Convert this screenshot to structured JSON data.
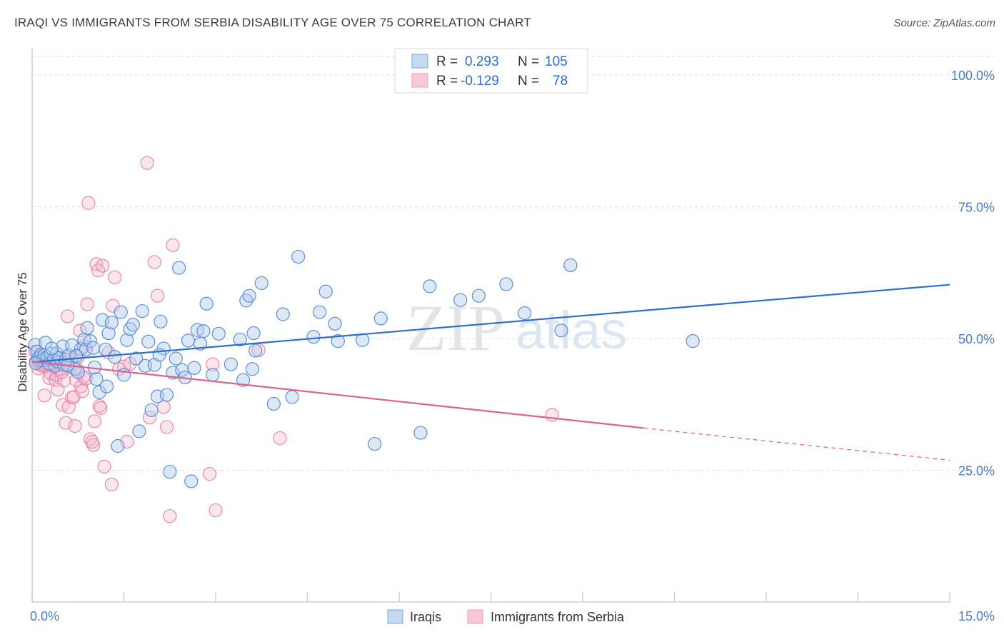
{
  "chart_data": {
    "type": "scatter",
    "title": "IRAQI VS IMMIGRANTS FROM SERBIA DISABILITY AGE OVER 75 CORRELATION CHART",
    "source": "Source: ZipAtlas.com",
    "xlabel": "",
    "ylabel": "Disability Age Over 75",
    "xlim": [
      0,
      15
    ],
    "ylim": [
      0,
      105
    ],
    "x_tick_labels": [
      "0.0%",
      "15.0%"
    ],
    "y_ticks": [
      25,
      50,
      75,
      100
    ],
    "y_tick_labels": [
      "25.0%",
      "50.0%",
      "75.0%",
      "100.0%"
    ],
    "watermark": "ZIPatlas",
    "legend": {
      "top": [
        {
          "r_label": "R =",
          "r_value": "0.293",
          "n_label": "N =",
          "n_value": "105"
        },
        {
          "r_label": "R =",
          "r_value": "-0.129",
          "n_label": "N =",
          "n_value": "78"
        }
      ],
      "bottom": [
        "Iraqis",
        "Immigrants from Serbia"
      ]
    },
    "series": [
      {
        "name": "Iraqis",
        "color": "#5b8fd6",
        "trend_color": "#2f6fcc",
        "trend": {
          "x0": 0.0,
          "y0": 45.5,
          "x1": 15.0,
          "y1": 60.2
        },
        "points": [
          [
            0.05,
            48.8
          ],
          [
            0.08,
            47.5
          ],
          [
            0.1,
            46.2
          ],
          [
            0.12,
            45.8
          ],
          [
            0.15,
            47.0
          ],
          [
            0.18,
            45.9
          ],
          [
            0.2,
            46.8
          ],
          [
            0.22,
            49.2
          ],
          [
            0.25,
            46.5
          ],
          [
            0.28,
            45.2
          ],
          [
            0.3,
            47.1
          ],
          [
            0.35,
            46.0
          ],
          [
            0.38,
            44.8
          ],
          [
            0.4,
            47.2
          ],
          [
            0.42,
            45.6
          ],
          [
            0.45,
            46.3
          ],
          [
            0.5,
            48.5
          ],
          [
            0.52,
            45.0
          ],
          [
            0.55,
            46.0
          ],
          [
            0.6,
            46.8
          ],
          [
            0.65,
            48.7
          ],
          [
            0.7,
            44.2
          ],
          [
            0.75,
            43.6
          ],
          [
            0.8,
            48.0
          ],
          [
            0.85,
            49.8
          ],
          [
            0.88,
            47.9
          ],
          [
            0.9,
            52.0
          ],
          [
            0.95,
            49.5
          ],
          [
            1.0,
            48.2
          ],
          [
            1.05,
            42.3
          ],
          [
            1.1,
            39.8
          ],
          [
            1.15,
            53.5
          ],
          [
            1.2,
            47.9
          ],
          [
            1.25,
            51.0
          ],
          [
            1.3,
            53.0
          ],
          [
            1.35,
            46.5
          ],
          [
            1.4,
            29.6
          ],
          [
            1.45,
            55.0
          ],
          [
            1.5,
            43.1
          ],
          [
            1.55,
            49.7
          ],
          [
            1.6,
            51.8
          ],
          [
            1.65,
            52.6
          ],
          [
            1.7,
            46.2
          ],
          [
            1.75,
            32.4
          ],
          [
            1.8,
            55.2
          ],
          [
            1.85,
            44.8
          ],
          [
            1.9,
            49.4
          ],
          [
            1.95,
            36.4
          ],
          [
            2.0,
            45.0
          ],
          [
            2.05,
            39.0
          ],
          [
            2.1,
            53.2
          ],
          [
            2.15,
            48.1
          ],
          [
            2.2,
            39.3
          ],
          [
            2.25,
            24.7
          ],
          [
            2.3,
            43.5
          ],
          [
            2.35,
            46.2
          ],
          [
            2.4,
            63.4
          ],
          [
            2.45,
            44.0
          ],
          [
            2.5,
            42.6
          ],
          [
            2.55,
            49.6
          ],
          [
            2.6,
            22.9
          ],
          [
            2.65,
            44.4
          ],
          [
            2.7,
            51.6
          ],
          [
            2.75,
            49.0
          ],
          [
            2.8,
            51.4
          ],
          [
            2.85,
            56.6
          ],
          [
            2.95,
            43.1
          ],
          [
            3.05,
            50.9
          ],
          [
            3.25,
            45.1
          ],
          [
            3.4,
            49.8
          ],
          [
            3.45,
            42.1
          ],
          [
            3.5,
            57.2
          ],
          [
            3.55,
            58.1
          ],
          [
            3.6,
            44.2
          ],
          [
            3.62,
            51.0
          ],
          [
            3.65,
            47.7
          ],
          [
            3.75,
            60.5
          ],
          [
            3.95,
            37.6
          ],
          [
            4.1,
            54.6
          ],
          [
            4.25,
            38.9
          ],
          [
            4.35,
            65.5
          ],
          [
            4.6,
            50.3
          ],
          [
            4.7,
            55.0
          ],
          [
            4.8,
            58.9
          ],
          [
            4.95,
            52.8
          ],
          [
            5.0,
            49.5
          ],
          [
            5.4,
            49.7
          ],
          [
            5.6,
            30.0
          ],
          [
            5.7,
            53.8
          ],
          [
            6.35,
            32.1
          ],
          [
            6.5,
            59.9
          ],
          [
            7.0,
            57.3
          ],
          [
            7.3,
            58.1
          ],
          [
            7.75,
            60.3
          ],
          [
            8.05,
            54.8
          ],
          [
            8.65,
            51.5
          ],
          [
            8.8,
            63.9
          ],
          [
            10.8,
            49.5
          ],
          [
            0.06,
            45.3
          ],
          [
            0.32,
            48.1
          ],
          [
            0.58,
            44.9
          ],
          [
            0.72,
            46.7
          ],
          [
            1.02,
            44.5
          ],
          [
            1.22,
            40.9
          ],
          [
            2.08,
            46.9
          ]
        ]
      },
      {
        "name": "Immigrants from Serbia",
        "color": "#e889a8",
        "trend_color": "#e0608a",
        "trend": {
          "x0": 0.0,
          "y0": 45.6,
          "x1": 10.0,
          "y1": 33.0
        },
        "trend_dashed_to": {
          "x": 15.0,
          "y": 26.9
        },
        "points": [
          [
            0.05,
            47.5
          ],
          [
            0.08,
            45.8
          ],
          [
            0.1,
            44.3
          ],
          [
            0.12,
            46.6
          ],
          [
            0.15,
            45.0
          ],
          [
            0.18,
            44.8
          ],
          [
            0.2,
            39.2
          ],
          [
            0.22,
            44.7
          ],
          [
            0.25,
            45.8
          ],
          [
            0.28,
            42.5
          ],
          [
            0.3,
            43.4
          ],
          [
            0.35,
            45.1
          ],
          [
            0.38,
            42.1
          ],
          [
            0.4,
            43.0
          ],
          [
            0.42,
            40.3
          ],
          [
            0.45,
            44.2
          ],
          [
            0.5,
            37.4
          ],
          [
            0.52,
            42.0
          ],
          [
            0.55,
            34.0
          ],
          [
            0.58,
            54.2
          ],
          [
            0.6,
            37.0
          ],
          [
            0.65,
            38.8
          ],
          [
            0.7,
            33.4
          ],
          [
            0.72,
            42.1
          ],
          [
            0.75,
            46.5
          ],
          [
            0.78,
            51.5
          ],
          [
            0.8,
            40.9
          ],
          [
            0.85,
            48.5
          ],
          [
            0.88,
            42.4
          ],
          [
            0.9,
            56.5
          ],
          [
            0.92,
            75.7
          ],
          [
            0.95,
            30.9
          ],
          [
            1.0,
            29.8
          ],
          [
            1.02,
            34.3
          ],
          [
            1.05,
            64.1
          ],
          [
            1.08,
            62.9
          ],
          [
            1.1,
            37.2
          ],
          [
            1.12,
            36.8
          ],
          [
            1.15,
            63.8
          ],
          [
            1.18,
            25.7
          ],
          [
            1.25,
            47.3
          ],
          [
            1.3,
            22.3
          ],
          [
            1.32,
            56.2
          ],
          [
            1.35,
            61.6
          ],
          [
            1.5,
            44.7
          ],
          [
            1.55,
            30.4
          ],
          [
            1.6,
            45.2
          ],
          [
            1.88,
            83.3
          ],
          [
            1.92,
            35.0
          ],
          [
            2.0,
            64.5
          ],
          [
            2.05,
            58.1
          ],
          [
            2.15,
            37.0
          ],
          [
            2.2,
            33.2
          ],
          [
            2.25,
            16.3
          ],
          [
            2.3,
            67.7
          ],
          [
            2.9,
            24.3
          ],
          [
            2.95,
            45.1
          ],
          [
            3.0,
            17.4
          ],
          [
            4.05,
            31.1
          ],
          [
            8.5,
            35.5
          ],
          [
            3.7,
            47.8
          ],
          [
            0.15,
            44.9
          ],
          [
            0.32,
            45.8
          ],
          [
            0.48,
            43.6
          ],
          [
            0.62,
            44.5
          ],
          [
            0.68,
            38.9
          ],
          [
            0.82,
            40.0
          ],
          [
            0.98,
            30.4
          ],
          [
            0.06,
            45.6
          ],
          [
            0.1,
            46.4
          ],
          [
            0.24,
            45.1
          ],
          [
            0.35,
            44.7
          ],
          [
            0.44,
            46.0
          ],
          [
            0.54,
            45.3
          ],
          [
            0.64,
            46.1
          ],
          [
            0.74,
            44.1
          ],
          [
            0.84,
            42.7
          ],
          [
            1.42,
            44.2
          ]
        ]
      }
    ]
  }
}
